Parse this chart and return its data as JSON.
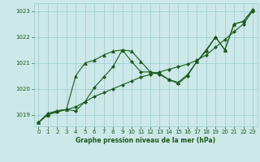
{
  "xlabel": "Graphe pression niveau de la mer (hPa)",
  "background_color": "#cce8e8",
  "grid_color": "#99cccc",
  "line_color": "#1a5c1a",
  "xlim": [
    -0.5,
    23.5
  ],
  "ylim": [
    1018.55,
    1023.3
  ],
  "yticks": [
    1019,
    1020,
    1021,
    1022,
    1023
  ],
  "xticks": [
    0,
    1,
    2,
    3,
    4,
    5,
    6,
    7,
    8,
    9,
    10,
    11,
    12,
    13,
    14,
    15,
    16,
    17,
    18,
    19,
    20,
    21,
    22,
    23
  ],
  "series": [
    {
      "x": [
        0,
        1,
        2,
        3,
        4,
        5,
        6,
        7,
        8,
        9,
        10,
        11,
        12,
        13,
        14,
        15,
        16,
        17,
        18,
        19,
        20,
        21,
        22,
        23
      ],
      "y": [
        1018.7,
        1019.0,
        1019.1,
        1019.2,
        1019.3,
        1019.5,
        1019.7,
        1019.85,
        1020.0,
        1020.15,
        1020.3,
        1020.45,
        1020.55,
        1020.65,
        1020.75,
        1020.85,
        1020.95,
        1021.1,
        1021.3,
        1021.6,
        1021.9,
        1022.2,
        1022.5,
        1023.0
      ],
      "marker": "D",
      "markersize": 2.0,
      "linewidth": 0.8
    },
    {
      "x": [
        0,
        1,
        2,
        3,
        4,
        5,
        6,
        7,
        8,
        9,
        10,
        11,
        12,
        13,
        14,
        15,
        16,
        17,
        18,
        19,
        20,
        21,
        22,
        23
      ],
      "y": [
        1018.7,
        1019.0,
        1019.15,
        1019.2,
        1020.5,
        1021.0,
        1021.1,
        1021.3,
        1021.45,
        1021.5,
        1021.45,
        1021.05,
        1020.65,
        1020.6,
        1020.35,
        1020.25,
        1020.55,
        1021.05,
        1021.5,
        1022.0,
        1021.5,
        1022.5,
        1022.6,
        1023.05
      ],
      "marker": "^",
      "markersize": 2.8,
      "linewidth": 0.8
    },
    {
      "x": [
        0,
        1,
        2,
        3,
        4,
        5,
        6,
        7,
        8,
        9,
        10,
        11,
        12,
        13,
        14,
        15,
        16,
        17,
        18,
        19,
        20,
        21,
        22,
        23
      ],
      "y": [
        1018.7,
        1019.05,
        1019.15,
        1019.2,
        1019.15,
        1019.5,
        1020.05,
        1020.45,
        1020.85,
        1021.5,
        1021.05,
        1020.65,
        1020.65,
        1020.55,
        1020.35,
        1020.2,
        1020.5,
        1021.05,
        1021.45,
        1022.0,
        1021.5,
        1022.5,
        1022.6,
        1023.05
      ],
      "marker": "D",
      "markersize": 2.0,
      "linewidth": 0.8
    }
  ]
}
